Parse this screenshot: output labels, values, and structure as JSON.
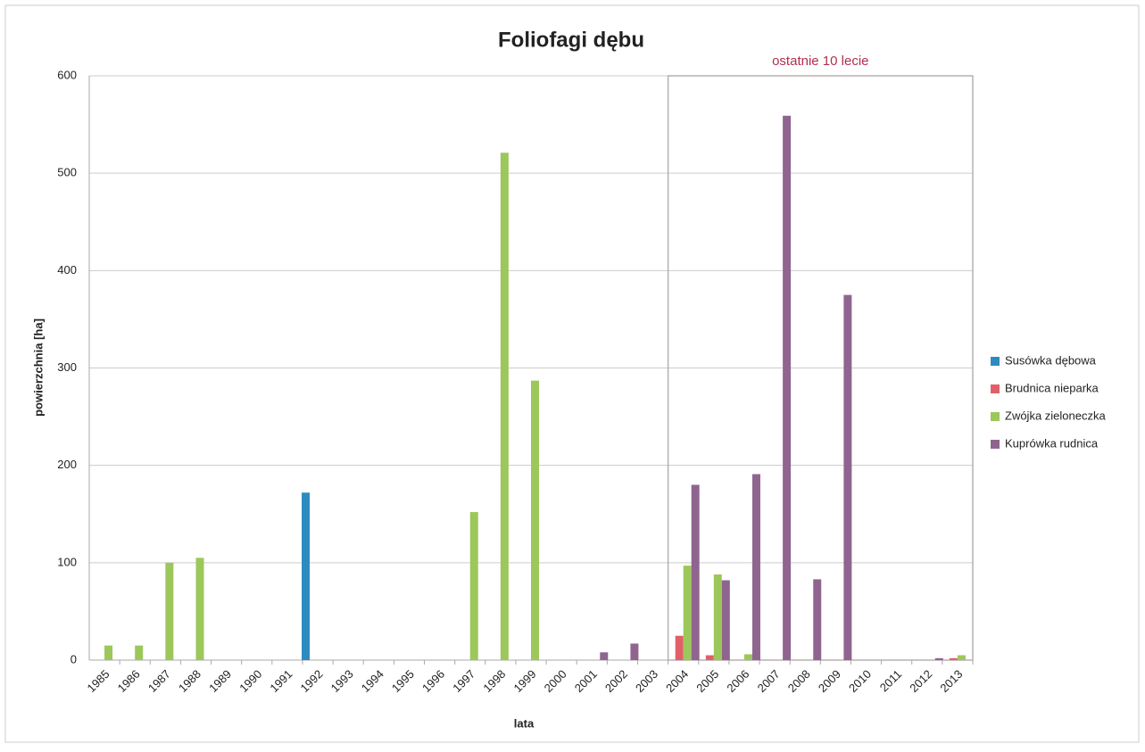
{
  "chart_data": {
    "type": "bar",
    "title": "Foliofagi dębu",
    "xlabel": "lata",
    "ylabel": "powierzchnia [ha]",
    "annotation": "ostatnie 10 lecie",
    "categories": [
      "1985",
      "1986",
      "1987",
      "1988",
      "1989",
      "1990",
      "1991",
      "1992",
      "1993",
      "1994",
      "1995",
      "1996",
      "1997",
      "1998",
      "1999",
      "2000",
      "2001",
      "2002",
      "2003",
      "2004",
      "2005",
      "2006",
      "2007",
      "2008",
      "2009",
      "2010",
      "2011",
      "2012",
      "2013"
    ],
    "series": [
      {
        "name": "Susówka dębowa",
        "color": "#2e8bc0",
        "values": [
          0,
          0,
          0,
          0,
          0,
          0,
          0,
          172,
          0,
          0,
          0,
          0,
          0,
          0,
          0,
          0,
          0,
          0,
          0,
          0,
          0,
          0,
          0,
          0,
          0,
          0,
          0,
          0,
          0
        ]
      },
      {
        "name": "Brudnica nieparka",
        "color": "#e0606a",
        "values": [
          0,
          0,
          0,
          0,
          0,
          0,
          0,
          0,
          0,
          0,
          0,
          0,
          0,
          0,
          0,
          0,
          0,
          0,
          0,
          25,
          5,
          0,
          0,
          0,
          0,
          0,
          0,
          0,
          2
        ]
      },
      {
        "name": "Zwójka zieloneczka",
        "color": "#9cc75a",
        "values": [
          15,
          15,
          100,
          105,
          0,
          0,
          0,
          0,
          0,
          0,
          0,
          0,
          152,
          521,
          287,
          0,
          0,
          0,
          0,
          97,
          88,
          6,
          0,
          0,
          0,
          0,
          0,
          0,
          5
        ]
      },
      {
        "name": "Kuprówka rudnica",
        "color": "#8f6590",
        "values": [
          0,
          0,
          0,
          0,
          0,
          0,
          0,
          0,
          0,
          0,
          0,
          0,
          0,
          0,
          0,
          0,
          8,
          17,
          0,
          180,
          82,
          191,
          559,
          83,
          375,
          0,
          0,
          2,
          0
        ]
      }
    ],
    "ylim": [
      0,
      600
    ],
    "yticks": [
      0,
      100,
      200,
      300,
      400,
      500,
      600
    ],
    "grid": true,
    "legend": "right"
  }
}
